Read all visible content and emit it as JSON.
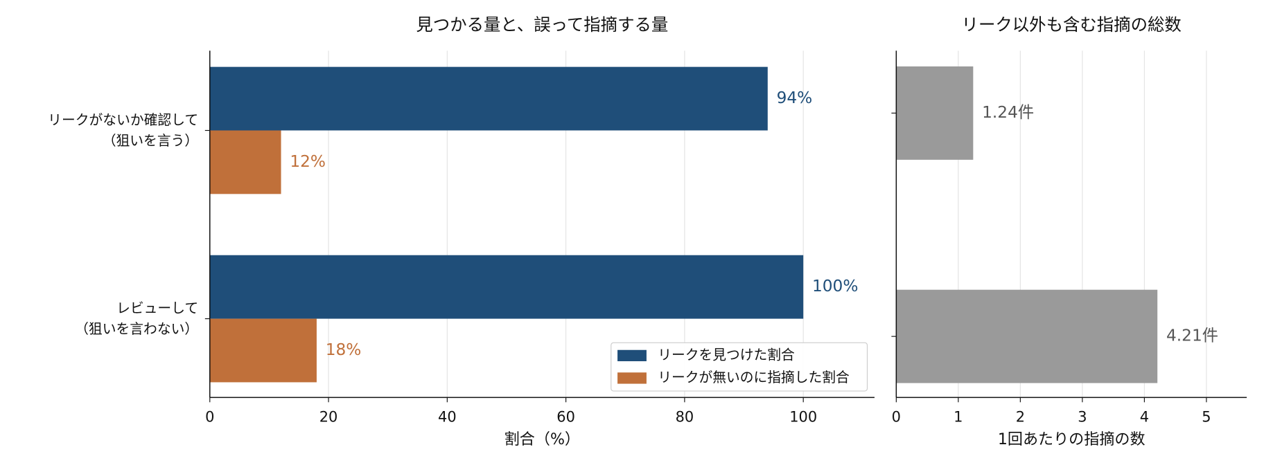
{
  "chart_data": [
    {
      "type": "barh",
      "title": "見つかる量と、誤って指摘する量",
      "xlabel": "割合（%）",
      "categories": [
        "リークがないか確認して\n（狙いを言う）",
        "レビューして\n（狙いを言わない）"
      ],
      "series": [
        {
          "name": "リークを見つけた割合",
          "color": "#1f4e79",
          "values": [
            94,
            100
          ],
          "value_labels": [
            "94%",
            "100%"
          ]
        },
        {
          "name": "リークが無いのに指摘した割合",
          "color": "#c0703a",
          "values": [
            12,
            18
          ],
          "value_labels": [
            "12%",
            "18%"
          ]
        }
      ],
      "xlim": [
        0,
        112
      ],
      "xticks": [
        0,
        20,
        40,
        60,
        80,
        100
      ],
      "grid": true,
      "legend": "lower right"
    },
    {
      "type": "barh",
      "title": "リーク以外も含む指摘の総数",
      "xlabel": "1回あたりの指摘の数",
      "categories": [
        null,
        null
      ],
      "series": [
        {
          "color": "#9a9a9a",
          "values": [
            1.24,
            4.21
          ],
          "value_labels": [
            "1.24件",
            "4.21件"
          ]
        }
      ],
      "xlim": [
        0,
        5.65
      ],
      "xticks": [
        0,
        1,
        2,
        3,
        4,
        5
      ],
      "grid": true
    }
  ]
}
